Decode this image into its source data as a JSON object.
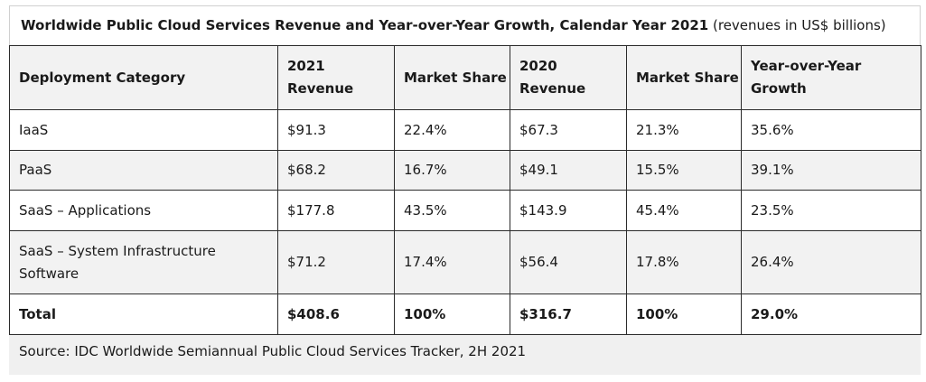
{
  "title": {
    "bold": "Worldwide Public Cloud Services Revenue and Year-over-Year Growth, Calendar Year 2021",
    "note": "(revenues in US$ billions)"
  },
  "table": {
    "headers": [
      "Deployment Category",
      "2021 Revenue",
      "Market Share",
      "2020 Revenue",
      "Market Share",
      "Year-over-Year Growth"
    ],
    "rows": [
      [
        "IaaS",
        "$91.3",
        "22.4%",
        "$67.3",
        "21.3%",
        "35.6%"
      ],
      [
        "PaaS",
        "$68.2",
        "16.7%",
        "$49.1",
        "15.5%",
        "39.1%"
      ],
      [
        "SaaS – Applications",
        "$177.8",
        "43.5%",
        "$143.9",
        "45.4%",
        "23.5%"
      ],
      [
        "SaaS – System Infrastructure Software",
        "$71.2",
        "17.4%",
        "$56.4",
        "17.8%",
        "26.4%"
      ]
    ],
    "total": [
      "Total",
      "$408.6",
      "100%",
      "$316.7",
      "100%",
      "29.0%"
    ]
  },
  "source": "Source: IDC Worldwide Semiannual Public Cloud Services Tracker, 2H 2021"
}
